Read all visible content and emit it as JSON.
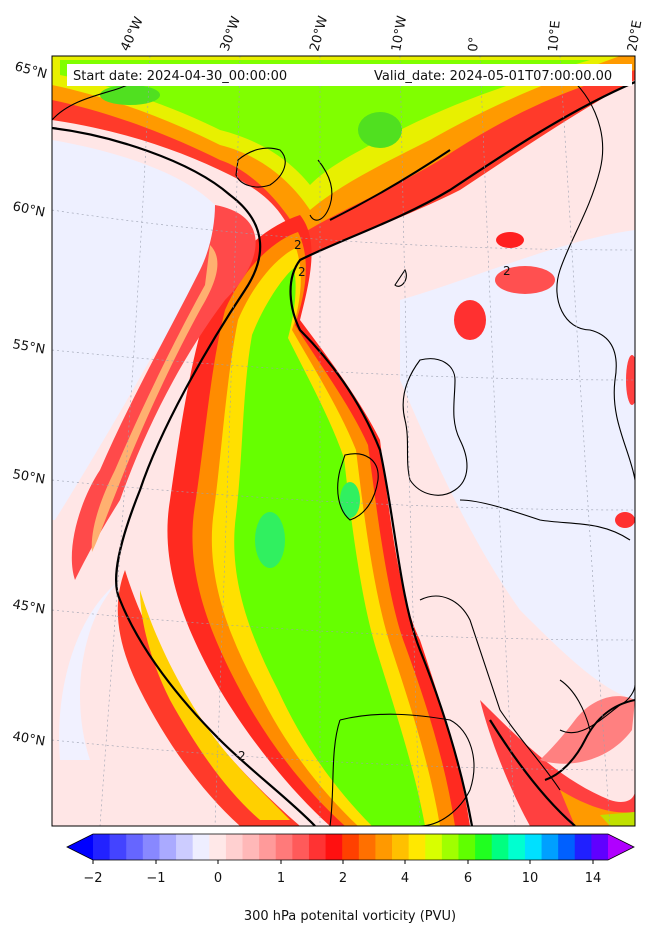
{
  "header": {
    "start_label": "Start date: 2024-04-30_00:00:00",
    "valid_label": "Valid_date: 2024-05-01T07:00:00.00"
  },
  "longitude_labels": [
    "40°W",
    "30°W",
    "20°W",
    "10°W",
    "0°",
    "10°E",
    "20°E"
  ],
  "latitude_labels": [
    "65°N",
    "60°N",
    "55°N",
    "50°N",
    "45°N",
    "40°N"
  ],
  "contour_labels": [
    "2",
    "2",
    "2",
    "2"
  ],
  "colorbar": {
    "ticks": [
      "−2",
      "−1",
      "0",
      "1",
      "2",
      "4",
      "6",
      "10",
      "14"
    ],
    "colors": [
      "#0000ff",
      "#2222ff",
      "#4444ff",
      "#6666ff",
      "#8888ff",
      "#aaaaff",
      "#ccccff",
      "#eeeeff",
      "#ffe8e8",
      "#ffd0d0",
      "#ffb8b8",
      "#ff9a9a",
      "#ff7a7a",
      "#ff5a5a",
      "#ff3333",
      "#ff1010",
      "#ff4000",
      "#ff7000",
      "#ff9900",
      "#ffc000",
      "#ffe800",
      "#d8ff00",
      "#a0ff00",
      "#60ff00",
      "#20ff20",
      "#00ff80",
      "#00ffd0",
      "#00e0ff",
      "#00a0ff",
      "#0060ff",
      "#2020ff",
      "#6000ff",
      "#b000ff"
    ],
    "label": "300 hPa potenital vorticity (PVU)"
  }
}
